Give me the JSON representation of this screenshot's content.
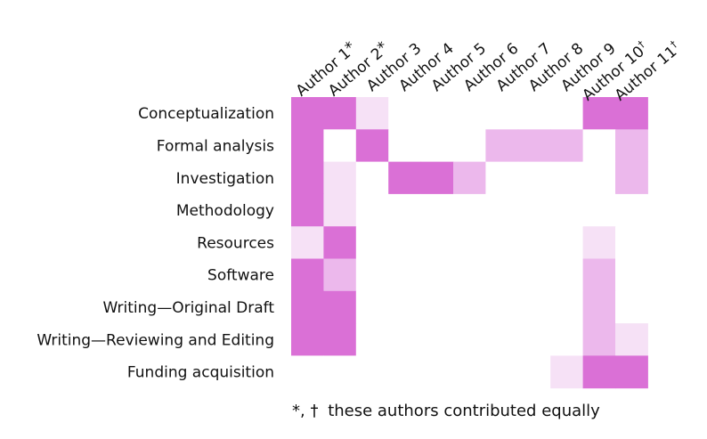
{
  "chart_data": {
    "type": "heatmap",
    "columns": [
      "Author 1",
      "Author 2",
      "Author 3",
      "Author 4",
      "Author 5",
      "Author 6",
      "Author 7",
      "Author 8",
      "Author 9",
      "Author 10",
      "Author 11"
    ],
    "column_marks": [
      "*",
      "*",
      "",
      "",
      "",
      "",
      "",
      "",
      "",
      "†",
      "†"
    ],
    "rows": [
      "Conceptualization",
      "Formal analysis",
      "Investigation",
      "Methodology",
      "Resources",
      "Software",
      "Writing—Original Draft",
      "Writing—Reviewing and Editing",
      "Funding acquisition"
    ],
    "values": [
      [
        3,
        3,
        1,
        0,
        0,
        0,
        0,
        0,
        0,
        3,
        3
      ],
      [
        3,
        0,
        3,
        0,
        0,
        0,
        2,
        2,
        2,
        0,
        2
      ],
      [
        3,
        1,
        0,
        3,
        3,
        2,
        0,
        0,
        0,
        0,
        2
      ],
      [
        3,
        1,
        0,
        0,
        0,
        0,
        0,
        0,
        0,
        0,
        0
      ],
      [
        1,
        3,
        0,
        0,
        0,
        0,
        0,
        0,
        0,
        1,
        0
      ],
      [
        3,
        2,
        0,
        0,
        0,
        0,
        0,
        0,
        0,
        2,
        0
      ],
      [
        3,
        3,
        0,
        0,
        0,
        0,
        0,
        0,
        0,
        2,
        0
      ],
      [
        3,
        3,
        0,
        0,
        0,
        0,
        0,
        0,
        0,
        2,
        1
      ],
      [
        0,
        0,
        0,
        0,
        0,
        0,
        0,
        0,
        1,
        3,
        3
      ]
    ],
    "level_colors": {
      "0": "#ffffff",
      "1": "#f6e1f6",
      "2": "#ecb8ec",
      "3": "#da70d6"
    },
    "legend": "none",
    "grid": false,
    "footnote": {
      "marks": "*, †",
      "text": "these authors contributed equally"
    }
  }
}
